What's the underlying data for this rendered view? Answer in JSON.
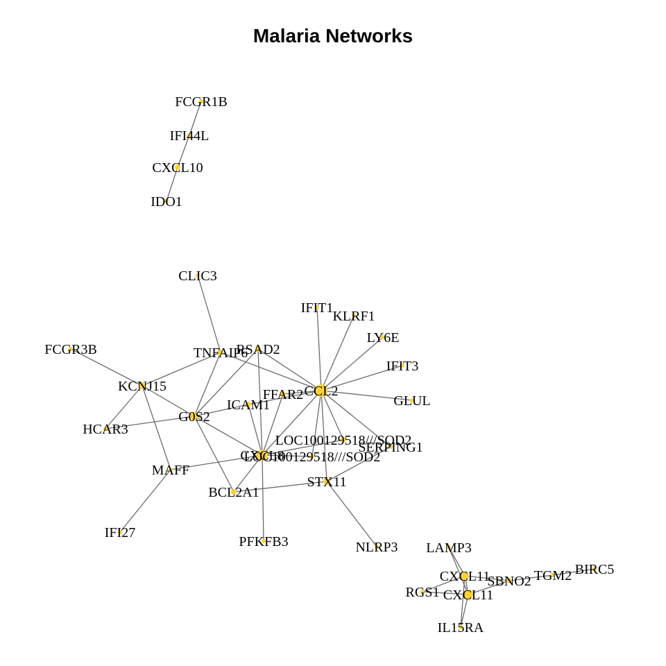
{
  "title": "Malaria Networks",
  "colors": {
    "node": "#ffd23a",
    "edge": "#6b6b6b",
    "text": "#000000"
  },
  "nodes": [
    {
      "id": "n1",
      "label": "FCGR1B"
    },
    {
      "id": "n2",
      "label": "IFI44L"
    },
    {
      "id": "n3",
      "label": "CXCL10"
    },
    {
      "id": "n4",
      "label": "IDO1"
    },
    {
      "id": "n5",
      "label": "CLIC3"
    },
    {
      "id": "n6",
      "label": "IFIT1"
    },
    {
      "id": "n7",
      "label": "KLRF1"
    },
    {
      "id": "n8",
      "label": "LY6E"
    },
    {
      "id": "n9",
      "label": "IFIT3"
    },
    {
      "id": "n10",
      "label": "FCGR3B"
    },
    {
      "id": "n11",
      "label": "TNFAIP6"
    },
    {
      "id": "n12",
      "label": "RSAD2"
    },
    {
      "id": "n13",
      "label": "KCNJ15"
    },
    {
      "id": "n14",
      "label": "CCL2"
    },
    {
      "id": "n15",
      "label": "FFAR2"
    },
    {
      "id": "n16",
      "label": "GLUL"
    },
    {
      "id": "n17",
      "label": "ICAM1"
    },
    {
      "id": "n18",
      "label": "G0S2"
    },
    {
      "id": "n19",
      "label": "HCAR3"
    },
    {
      "id": "n20",
      "label": "LOC100129518///SOD2"
    },
    {
      "id": "n21",
      "label": "SERPING1"
    },
    {
      "id": "n22",
      "label": "CXCL8"
    },
    {
      "id": "n23",
      "label": "LOC100129518///SOD2"
    },
    {
      "id": "n24",
      "label": "MAFF"
    },
    {
      "id": "n25",
      "label": "STX11"
    },
    {
      "id": "n26",
      "label": "BCL2A1"
    },
    {
      "id": "n27",
      "label": "IFI27"
    },
    {
      "id": "n28",
      "label": "PFKFB3"
    },
    {
      "id": "n29",
      "label": "NLRP3"
    },
    {
      "id": "n30",
      "label": "LAMP3"
    },
    {
      "id": "n31",
      "label": "CXCL11"
    },
    {
      "id": "n32",
      "label": "SBNO2"
    },
    {
      "id": "n33",
      "label": "TGM2"
    },
    {
      "id": "n34",
      "label": "BIRC5"
    },
    {
      "id": "n35",
      "label": "RGS1"
    },
    {
      "id": "n36",
      "label": "CXCL11"
    },
    {
      "id": "n37",
      "label": "IL15RA"
    }
  ],
  "edges": [
    [
      "n1",
      "n2"
    ],
    [
      "n2",
      "n3"
    ],
    [
      "n3",
      "n4"
    ],
    [
      "n5",
      "n11"
    ],
    [
      "n11",
      "n18"
    ],
    [
      "n11",
      "n14"
    ],
    [
      "n10",
      "n13"
    ],
    [
      "n13",
      "n11"
    ],
    [
      "n13",
      "n19"
    ],
    [
      "n13",
      "n24"
    ],
    [
      "n13",
      "n18"
    ],
    [
      "n12",
      "n18"
    ],
    [
      "n12",
      "n22"
    ],
    [
      "n12",
      "n14"
    ],
    [
      "n18",
      "n19"
    ],
    [
      "n18",
      "n17"
    ],
    [
      "n18",
      "n26"
    ],
    [
      "n18",
      "n22"
    ],
    [
      "n17",
      "n22"
    ],
    [
      "n14",
      "n6"
    ],
    [
      "n14",
      "n7"
    ],
    [
      "n14",
      "n8"
    ],
    [
      "n14",
      "n9"
    ],
    [
      "n14",
      "n16"
    ],
    [
      "n14",
      "n15"
    ],
    [
      "n14",
      "n17"
    ],
    [
      "n14",
      "n20"
    ],
    [
      "n14",
      "n21"
    ],
    [
      "n14",
      "n22"
    ],
    [
      "n14",
      "n23"
    ],
    [
      "n14",
      "n25"
    ],
    [
      "n15",
      "n22"
    ],
    [
      "n22",
      "n24"
    ],
    [
      "n22",
      "n26"
    ],
    [
      "n22",
      "n28"
    ],
    [
      "n22",
      "n20"
    ],
    [
      "n22",
      "n23"
    ],
    [
      "n24",
      "n27"
    ],
    [
      "n26",
      "n25"
    ],
    [
      "n25",
      "n29"
    ],
    [
      "n25",
      "n21"
    ],
    [
      "n30",
      "n31"
    ],
    [
      "n30",
      "n36"
    ],
    [
      "n31",
      "n35"
    ],
    [
      "n31",
      "n36"
    ],
    [
      "n31",
      "n32"
    ],
    [
      "n31",
      "n37"
    ],
    [
      "n36",
      "n35"
    ],
    [
      "n36",
      "n32"
    ],
    [
      "n36",
      "n37"
    ],
    [
      "n32",
      "n33"
    ],
    [
      "n33",
      "n34"
    ]
  ]
}
